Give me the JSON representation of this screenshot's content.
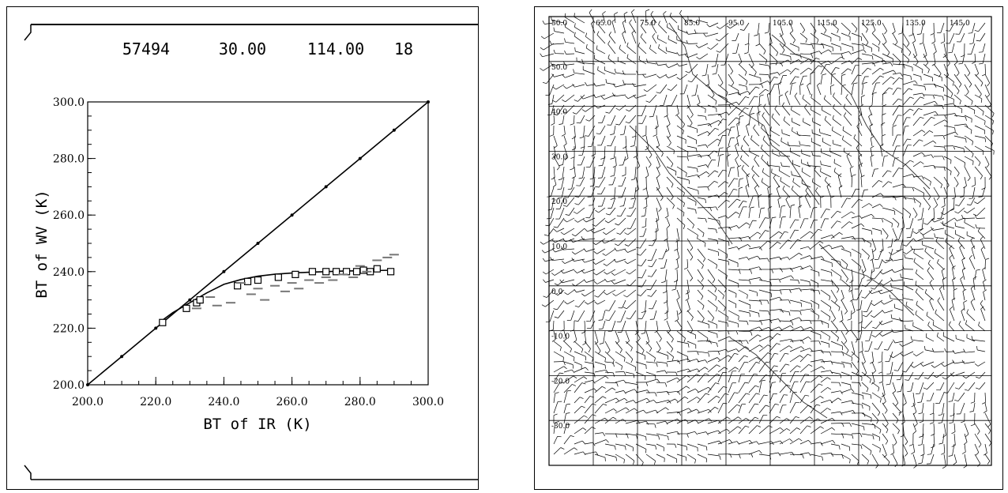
{
  "left_header": {
    "station": "57494",
    "latitude": "30.00",
    "longitude": "114.00",
    "hour": "18"
  },
  "chart_data": [
    {
      "type": "scatter",
      "title": "",
      "xlabel": "BT of IR (K)",
      "ylabel": "BT of WV (K)",
      "xlim": [
        200,
        300
      ],
      "ylim": [
        200,
        300
      ],
      "x_ticks": [
        "200.0",
        "220.0",
        "240.0",
        "260.0",
        "280.0",
        "300.0"
      ],
      "y_ticks": [
        "200.0",
        "220.0",
        "240.0",
        "260.0",
        "280.0",
        "300.0"
      ],
      "grid": false,
      "series": [
        {
          "type": "line",
          "x": [
            200,
            210,
            220,
            230,
            240,
            250,
            260,
            270,
            280,
            290,
            300
          ],
          "y": [
            200,
            210,
            220,
            230,
            240,
            250,
            260,
            270,
            280,
            290,
            300
          ]
        },
        {
          "type": "line",
          "x": [
            221,
            225,
            230,
            235,
            240,
            245,
            250,
            255,
            260,
            265,
            270,
            275,
            280,
            285,
            290
          ],
          "y": [
            222,
            225.5,
            229,
            232.5,
            235.5,
            237.2,
            238.4,
            239.1,
            239.5,
            239.8,
            240,
            240.2,
            240.3,
            240.4,
            240.5
          ]
        },
        {
          "type": "scatter",
          "marker": "square",
          "x": [
            222,
            229,
            232,
            233,
            244,
            247,
            250,
            256,
            261,
            266,
            270,
            273,
            276,
            279,
            281,
            283,
            285,
            289
          ],
          "y": [
            222,
            227,
            229,
            230,
            235,
            236.5,
            237,
            238,
            239,
            240,
            240,
            240,
            240,
            240,
            240.5,
            240,
            241,
            240
          ]
        },
        {
          "type": "scatter",
          "marker": "dot",
          "x": [
            245,
            250,
            255,
            260,
            265,
            270,
            275,
            280,
            285,
            290,
            248,
            258,
            268,
            278,
            288,
            252,
            262,
            272,
            282,
            242,
            238,
            232,
            236
          ],
          "y": [
            236,
            234,
            235,
            236,
            237,
            238,
            239,
            242,
            244,
            246,
            232,
            233,
            236,
            238,
            245,
            230,
            234,
            237,
            240,
            229,
            228,
            227,
            231
          ]
        }
      ]
    },
    {
      "type": "other",
      "description": "",
      "lon_labels": [
        "50.0",
        "65.0",
        "75.0",
        "85.0",
        "95.0",
        "105.0",
        "115.0",
        "125.0",
        "135.0",
        "145.0"
      ],
      "lat_labels": [
        "60.0",
        "50.0",
        "40.0",
        "30.0",
        "20.0",
        "10.0",
        "0.0",
        "-10.0",
        "-20.0",
        "-30.0"
      ],
      "grid": true
    }
  ]
}
